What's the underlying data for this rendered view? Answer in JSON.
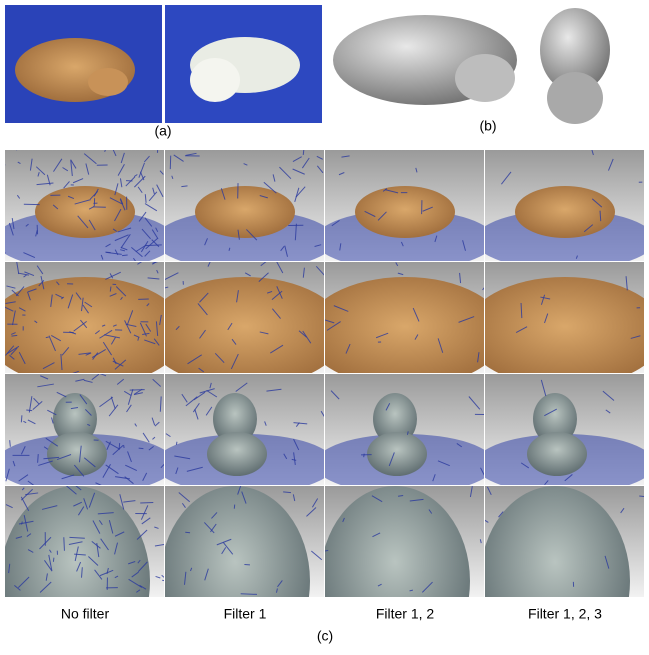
{
  "panel_labels": {
    "a": "(a)",
    "b": "(b)",
    "c": "(c)"
  },
  "columns": [
    "No filter",
    "Filter 1",
    "Filter 1, 2",
    "Filter 1, 2, 3"
  ]
}
